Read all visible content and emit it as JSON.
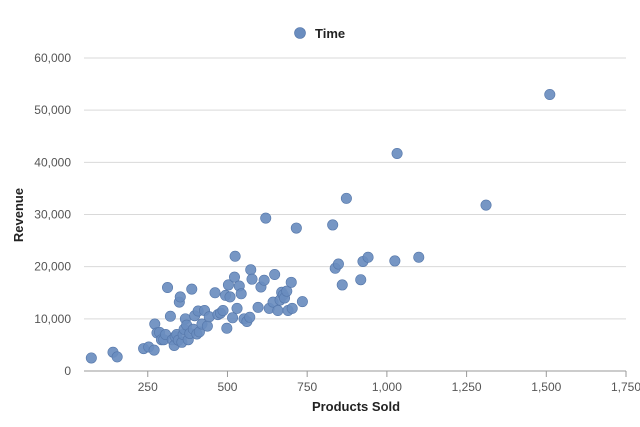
{
  "chart_data": {
    "type": "scatter",
    "xlabel": "Products Sold",
    "ylabel": "Revenue",
    "xlim": [
      50,
      1750
    ],
    "ylim": [
      0,
      60000
    ],
    "x_ticks": [
      250,
      500,
      750,
      1000,
      1250,
      1500,
      1750
    ],
    "x_tick_labels": [
      "250",
      "500",
      "750",
      "1,000",
      "1,250",
      "1,500",
      "1,750"
    ],
    "y_ticks": [
      0,
      10000,
      20000,
      30000,
      40000,
      50000,
      60000
    ],
    "y_tick_labels": [
      "0",
      "10,000",
      "20,000",
      "30,000",
      "40,000",
      "50,000",
      "60,000"
    ],
    "grid": "horizontal",
    "legend_position": "top-center",
    "colors": {
      "series": "#6a8dbf",
      "series_stroke": "#5577aa",
      "grid": "#d9d9d9",
      "axis": "#999999"
    },
    "series": [
      {
        "name": "Time",
        "points": [
          [
            73,
            2500
          ],
          [
            141,
            3600
          ],
          [
            154,
            2700
          ],
          [
            237,
            4300
          ],
          [
            253,
            4600
          ],
          [
            270,
            4000
          ],
          [
            272,
            9000
          ],
          [
            279,
            7300
          ],
          [
            287,
            7400
          ],
          [
            293,
            6000
          ],
          [
            300,
            6000
          ],
          [
            306,
            7000
          ],
          [
            312,
            16000
          ],
          [
            321,
            10500
          ],
          [
            327,
            6000
          ],
          [
            333,
            4900
          ],
          [
            336,
            6600
          ],
          [
            341,
            7000
          ],
          [
            346,
            5900
          ],
          [
            349,
            13200
          ],
          [
            352,
            14200
          ],
          [
            357,
            5500
          ],
          [
            361,
            7000
          ],
          [
            364,
            8000
          ],
          [
            368,
            10000
          ],
          [
            372,
            8800
          ],
          [
            377,
            6000
          ],
          [
            382,
            7200
          ],
          [
            388,
            15700
          ],
          [
            393,
            8000
          ],
          [
            397,
            10600
          ],
          [
            404,
            7100
          ],
          [
            408,
            11500
          ],
          [
            412,
            7500
          ],
          [
            420,
            9000
          ],
          [
            428,
            11600
          ],
          [
            437,
            8600
          ],
          [
            443,
            10400
          ],
          [
            461,
            15000
          ],
          [
            470,
            10800
          ],
          [
            478,
            11100
          ],
          [
            486,
            11600
          ],
          [
            494,
            14500
          ],
          [
            498,
            8200
          ],
          [
            503,
            16500
          ],
          [
            508,
            14200
          ],
          [
            516,
            10200
          ],
          [
            522,
            18000
          ],
          [
            524,
            22000
          ],
          [
            530,
            12000
          ],
          [
            537,
            16300
          ],
          [
            543,
            14800
          ],
          [
            552,
            10000
          ],
          [
            561,
            9500
          ],
          [
            570,
            10300
          ],
          [
            573,
            19400
          ],
          [
            577,
            17600
          ],
          [
            596,
            12200
          ],
          [
            605,
            16100
          ],
          [
            615,
            17400
          ],
          [
            620,
            29300
          ],
          [
            631,
            12000
          ],
          [
            643,
            13200
          ],
          [
            648,
            18500
          ],
          [
            658,
            11600
          ],
          [
            665,
            13600
          ],
          [
            670,
            15100
          ],
          [
            675,
            14600
          ],
          [
            679,
            14000
          ],
          [
            686,
            15300
          ],
          [
            690,
            11600
          ],
          [
            700,
            17000
          ],
          [
            703,
            12000
          ],
          [
            716,
            27400
          ],
          [
            735,
            13300
          ],
          [
            830,
            28000
          ],
          [
            838,
            19700
          ],
          [
            848,
            20500
          ],
          [
            860,
            16500
          ],
          [
            873,
            33100
          ],
          [
            918,
            17500
          ],
          [
            925,
            21000
          ],
          [
            941,
            21800
          ],
          [
            1025,
            21100
          ],
          [
            1032,
            41700
          ],
          [
            1100,
            21800
          ],
          [
            1311,
            31800
          ],
          [
            1511,
            53000
          ]
        ]
      }
    ]
  }
}
